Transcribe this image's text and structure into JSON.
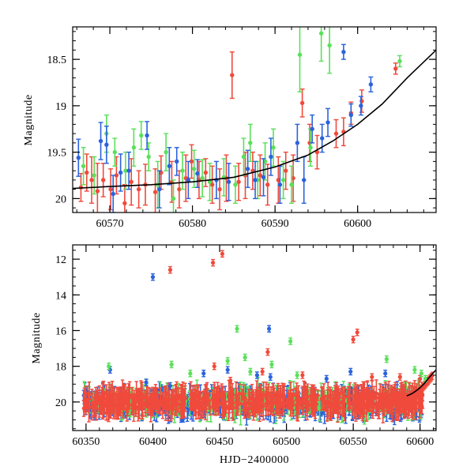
{
  "colors": {
    "red": "#f04a3c",
    "green": "#5ae05a",
    "blue": "#2a63dc",
    "model": "#000000"
  },
  "chart_data": [
    {
      "id": "top",
      "type": "scatter",
      "title": "",
      "xlabel": "",
      "ylabel": "Magnitude",
      "xlim": [
        60565.5,
        60609.5
      ],
      "ylim": [
        20.15,
        18.15
      ],
      "y_inverted": true,
      "grid": false,
      "legend": "none",
      "xticks": [
        60570,
        60580,
        60590,
        60600
      ],
      "yticks": [
        18.5,
        19,
        19.5,
        20
      ],
      "xtick_labels": [
        "60570",
        "60580",
        "60590",
        "60600"
      ],
      "ytick_labels": [
        "18.5",
        "19",
        "19.5",
        "20"
      ],
      "model_curve": {
        "x": [
          60565.5,
          60570,
          60575,
          60580,
          60585,
          60590,
          60594,
          60597,
          60600,
          60603,
          60606,
          60609.5
        ],
        "y": [
          19.89,
          19.87,
          19.85,
          19.82,
          19.77,
          19.66,
          19.53,
          19.38,
          19.2,
          18.98,
          18.7,
          18.4
        ]
      },
      "series": [
        {
          "color": "red",
          "points": [
            [
              60566.5,
              19.88,
              0.15
            ],
            [
              60567.2,
              19.72,
              0.2
            ],
            [
              60567.8,
              19.8,
              0.25
            ],
            [
              60568.5,
              19.92,
              0.3
            ],
            [
              60569.2,
              19.8,
              0.18
            ],
            [
              60570.1,
              19.9,
              0.22
            ],
            [
              60570.8,
              19.75,
              0.2
            ],
            [
              60571.8,
              20.05,
              0.2
            ],
            [
              60572.6,
              19.82,
              0.25
            ],
            [
              60573.5,
              19.9,
              0.2
            ],
            [
              60574.3,
              19.85,
              0.22
            ],
            [
              60575.5,
              19.93,
              0.25
            ],
            [
              60576.2,
              19.72,
              0.18
            ],
            [
              60577.5,
              19.82,
              0.22
            ],
            [
              60578.4,
              19.9,
              0.2
            ],
            [
              60579.2,
              19.78,
              0.25
            ],
            [
              60579.9,
              19.6,
              0.18
            ],
            [
              60580.8,
              19.8,
              0.2
            ],
            [
              60581.6,
              19.72,
              0.15
            ],
            [
              60582.4,
              19.85,
              0.2
            ],
            [
              60583.3,
              19.9,
              0.22
            ],
            [
              60584.1,
              19.78,
              0.25
            ],
            [
              60584.8,
              18.67,
              0.25
            ],
            [
              60585.6,
              19.82,
              0.2
            ],
            [
              60586.4,
              19.75,
              0.25
            ],
            [
              60587.3,
              19.7,
              0.2
            ],
            [
              60588.2,
              19.75,
              0.22
            ],
            [
              60589.1,
              19.85,
              0.22
            ],
            [
              60590.4,
              19.8,
              0.25
            ],
            [
              60591.3,
              19.7,
              0.2
            ],
            [
              60592.2,
              19.78,
              0.25
            ],
            [
              60593.3,
              18.97,
              0.15
            ],
            [
              60594.2,
              19.4,
              0.2
            ],
            [
              60595.1,
              19.5,
              0.18
            ],
            [
              60597.4,
              19.3,
              0.15
            ],
            [
              60598.3,
              19.28,
              0.15
            ],
            [
              60599.2,
              19.08,
              0.12
            ],
            [
              60600.5,
              18.95,
              0.12
            ],
            [
              60604.6,
              18.6,
              0.06
            ]
          ]
        },
        {
          "color": "green",
          "points": [
            [
              60566.8,
              19.65,
              0.2
            ],
            [
              60568.1,
              19.75,
              0.2
            ],
            [
              60569.6,
              19.3,
              0.2
            ],
            [
              60570.6,
              19.5,
              0.15
            ],
            [
              60571.9,
              19.7,
              0.2
            ],
            [
              60572.9,
              19.45,
              0.2
            ],
            [
              60573.8,
              19.32,
              0.15
            ],
            [
              60574.7,
              19.55,
              0.15
            ],
            [
              60575.8,
              19.85,
              0.25
            ],
            [
              60576.8,
              19.5,
              0.2
            ],
            [
              60577.7,
              20.0,
              0.2
            ],
            [
              60578.8,
              19.7,
              0.2
            ],
            [
              60580.2,
              19.68,
              0.2
            ],
            [
              60581.2,
              19.78,
              0.2
            ],
            [
              60582.1,
              19.82,
              0.2
            ],
            [
              60583.8,
              19.77,
              0.2
            ],
            [
              60585.2,
              19.85,
              0.2
            ],
            [
              60586.2,
              19.55,
              0.2
            ],
            [
              60587.0,
              19.4,
              0.2
            ],
            [
              60587.9,
              19.8,
              0.2
            ],
            [
              60588.8,
              19.6,
              0.2
            ],
            [
              60589.8,
              19.45,
              0.2
            ],
            [
              60591.0,
              19.8,
              0.2
            ],
            [
              60592.0,
              19.85,
              0.2
            ],
            [
              60593.0,
              18.45,
              0.4
            ],
            [
              60594.3,
              19.45,
              0.2
            ],
            [
              60595.6,
              18.22,
              0.3
            ],
            [
              60596.6,
              18.35,
              0.3
            ],
            [
              60605.1,
              18.52,
              0.06
            ]
          ]
        },
        {
          "color": "blue",
          "points": [
            [
              60566.2,
              19.56,
              0.2
            ],
            [
              60568.9,
              19.38,
              0.2
            ],
            [
              60569.6,
              19.42,
              0.2
            ],
            [
              60570.4,
              19.95,
              0.2
            ],
            [
              60571.3,
              19.72,
              0.2
            ],
            [
              60572.3,
              19.7,
              0.2
            ],
            [
              60574.5,
              19.32,
              0.15
            ],
            [
              60576.0,
              19.9,
              0.2
            ],
            [
              60577.2,
              19.65,
              0.2
            ],
            [
              60578.1,
              19.6,
              0.15
            ],
            [
              60579.5,
              19.8,
              0.2
            ],
            [
              60580.6,
              19.73,
              0.15
            ],
            [
              60582.9,
              19.8,
              0.2
            ],
            [
              60584.4,
              19.82,
              0.2
            ],
            [
              60586.7,
              19.68,
              0.2
            ],
            [
              60587.6,
              19.8,
              0.2
            ],
            [
              60588.6,
              19.77,
              0.2
            ],
            [
              60589.5,
              19.55,
              0.2
            ],
            [
              60590.6,
              19.85,
              0.2
            ],
            [
              60592.7,
              19.4,
              0.2
            ],
            [
              60593.5,
              19.8,
              0.25
            ],
            [
              60594.5,
              19.25,
              0.15
            ],
            [
              60595.7,
              19.35,
              0.15
            ],
            [
              60596.4,
              19.18,
              0.15
            ],
            [
              60598.3,
              18.42,
              0.08
            ],
            [
              60599.2,
              19.1,
              0.12
            ],
            [
              60600.4,
              19.0,
              0.1
            ],
            [
              60601.6,
              18.77,
              0.08
            ]
          ]
        }
      ]
    },
    {
      "id": "bottom",
      "type": "scatter",
      "title": "",
      "xlabel": "HJD−2400000",
      "ylabel": "Magnitude",
      "xlim": [
        60340,
        60612
      ],
      "ylim": [
        21.6,
        11.2
      ],
      "y_inverted": true,
      "grid": false,
      "legend": "none",
      "xticks": [
        60350,
        60400,
        60450,
        60500,
        60550,
        60600
      ],
      "yticks": [
        12,
        14,
        16,
        18,
        20
      ],
      "xtick_labels": [
        "60350",
        "60400",
        "60450",
        "60500",
        "60550",
        "60600"
      ],
      "ytick_labels": [
        "12",
        "14",
        "16",
        "18",
        "20"
      ],
      "model_curve": {
        "x": [
          60590,
          60594,
          60597,
          60600,
          60603,
          60606,
          60609.5,
          60612
        ],
        "y": [
          19.66,
          19.53,
          19.38,
          19.2,
          18.98,
          18.7,
          18.4,
          18.2
        ]
      },
      "outliers": [
        {
          "color": "blue",
          "points": [
            [
              60400,
              13.0
            ],
            [
              60487,
              15.9
            ],
            [
              60413,
              19.1
            ],
            [
              60478,
              18.5
            ],
            [
              60574,
              18.4
            ],
            [
              60548,
              18.3
            ],
            [
              60368,
              18.2
            ],
            [
              60438,
              18.4
            ],
            [
              60488,
              18.6
            ],
            [
              60530,
              18.7
            ],
            [
              60395,
              18.9
            ],
            [
              60456,
              18.2
            ]
          ]
        },
        {
          "color": "red",
          "points": [
            [
              60413,
              12.6
            ],
            [
              60445,
              12.2
            ],
            [
              60452,
              11.7
            ],
            [
              60486,
              17.2
            ],
            [
              60550,
              16.5
            ],
            [
              60553,
              16.1
            ],
            [
              60600,
              18.7
            ],
            [
              60585,
              18.6
            ],
            [
              60446,
              18.0
            ],
            [
              60512,
              18.5
            ],
            [
              60458,
              18.8
            ],
            [
              60482,
              18.3
            ],
            [
              60564,
              18.6
            ]
          ]
        },
        {
          "color": "green",
          "points": [
            [
              60463,
              15.9
            ],
            [
              60503,
              16.6
            ],
            [
              60367,
              18.0
            ],
            [
              60414,
              17.9
            ],
            [
              60456,
              17.7
            ],
            [
              60469,
              17.5
            ],
            [
              60489,
              17.9
            ],
            [
              60575,
              17.6
            ],
            [
              60596,
              18.2
            ],
            [
              60601,
              18.4
            ],
            [
              60508,
              18.5
            ],
            [
              60428,
              18.4
            ],
            [
              60473,
              18.3
            ],
            [
              60604,
              18.7
            ]
          ]
        }
      ]
    }
  ]
}
